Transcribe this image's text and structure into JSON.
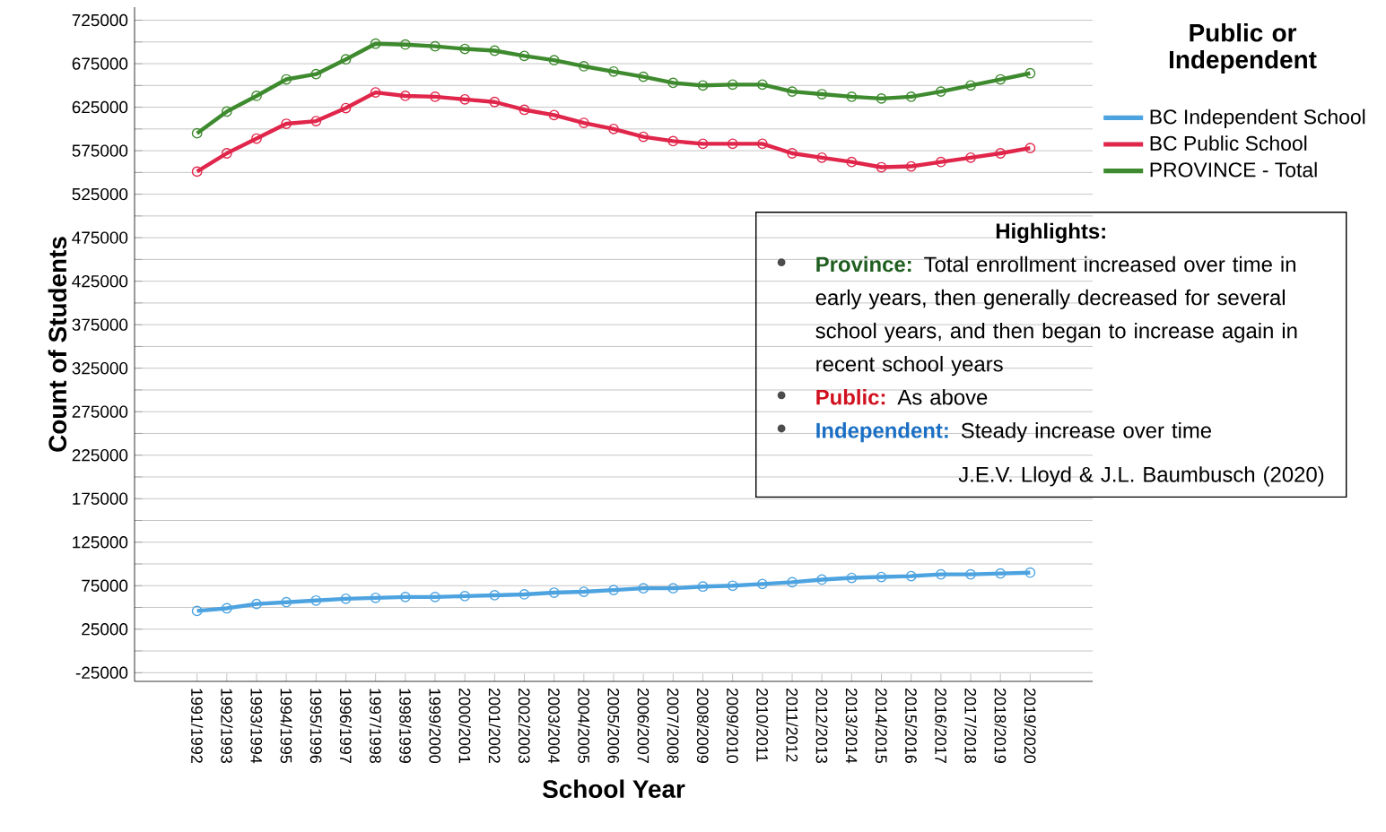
{
  "chart_data": {
    "type": "line",
    "xlabel": "School Year",
    "ylabel": "Count of Students",
    "legend_title": "Public or Independent",
    "categories": [
      "1991/1992",
      "1992/1993",
      "1993/1994",
      "1994/1995",
      "1995/1996",
      "1996/1997",
      "1997/1998",
      "1998/1999",
      "1999/2000",
      "2000/2001",
      "2001/2002",
      "2002/2003",
      "2003/2004",
      "2004/2005",
      "2005/2006",
      "2006/2007",
      "2007/2008",
      "2008/2009",
      "2009/2010",
      "2010/2011",
      "2011/2012",
      "2012/2013",
      "2013/2014",
      "2014/2015",
      "2015/2016",
      "2016/2017",
      "2017/2018",
      "2018/2019",
      "2019/2020"
    ],
    "series": [
      {
        "name": "BC Independent School",
        "color": "#4da3e0",
        "values": [
          46000,
          49000,
          54000,
          56000,
          58000,
          60000,
          61000,
          62000,
          62000,
          63000,
          64000,
          65000,
          67000,
          68000,
          70000,
          72000,
          72000,
          74000,
          75000,
          77000,
          79000,
          82000,
          84000,
          85000,
          86000,
          88000,
          88000,
          89000,
          90000
        ]
      },
      {
        "name": "BC Public School",
        "color": "#e0264a",
        "values": [
          551000,
          572000,
          589000,
          606000,
          609000,
          624000,
          642000,
          638000,
          637000,
          634000,
          631000,
          622000,
          616000,
          607000,
          600000,
          591000,
          586000,
          583000,
          583000,
          583000,
          572000,
          567000,
          562000,
          556000,
          557000,
          562000,
          567000,
          572000,
          578000
        ]
      },
      {
        "name": "PROVINCE - Total",
        "color": "#3e8a2e",
        "values": [
          595000,
          620000,
          638000,
          657000,
          663000,
          680000,
          698000,
          697000,
          695000,
          692000,
          690000,
          684000,
          679000,
          672000,
          666000,
          660000,
          653000,
          650000,
          651000,
          651000,
          643000,
          640000,
          637000,
          635000,
          637000,
          643000,
          650000,
          657000,
          664000
        ]
      }
    ],
    "ylim": [
      -35000,
      740000
    ],
    "yticks": [
      -25000,
      {
        "value": 0,
        "label": null
      },
      25000,
      {
        "value": 50000,
        "label": null
      },
      75000,
      {
        "value": 100000,
        "label": null
      },
      125000,
      {
        "value": 150000,
        "label": null
      },
      175000,
      {
        "value": 200000,
        "label": null
      },
      225000,
      {
        "value": 250000,
        "label": null
      },
      275000,
      {
        "value": 300000,
        "label": null
      },
      325000,
      {
        "value": 350000,
        "label": null
      },
      375000,
      {
        "value": 400000,
        "label": null
      },
      425000,
      {
        "value": 450000,
        "label": null
      },
      475000,
      {
        "value": 500000,
        "label": null
      },
      525000,
      {
        "value": 550000,
        "label": null
      },
      575000,
      {
        "value": 600000,
        "label": null
      },
      625000,
      {
        "value": 650000,
        "label": null
      },
      675000,
      {
        "value": 700000,
        "label": null
      },
      725000
    ],
    "grid": "y",
    "legend": "top right",
    "marker": "circle",
    "line_style": "solid",
    "annotations": [
      "Highlights:",
      "Province:",
      "Total enrollment increased over time in early years, then generally decreased for several school years, and then began to increase again in recent school years",
      "Public:",
      "As above",
      "Independent:",
      "Steady increase over time",
      "J.E.V. Lloyd & J.L. Baumbusch (2020)"
    ]
  }
}
